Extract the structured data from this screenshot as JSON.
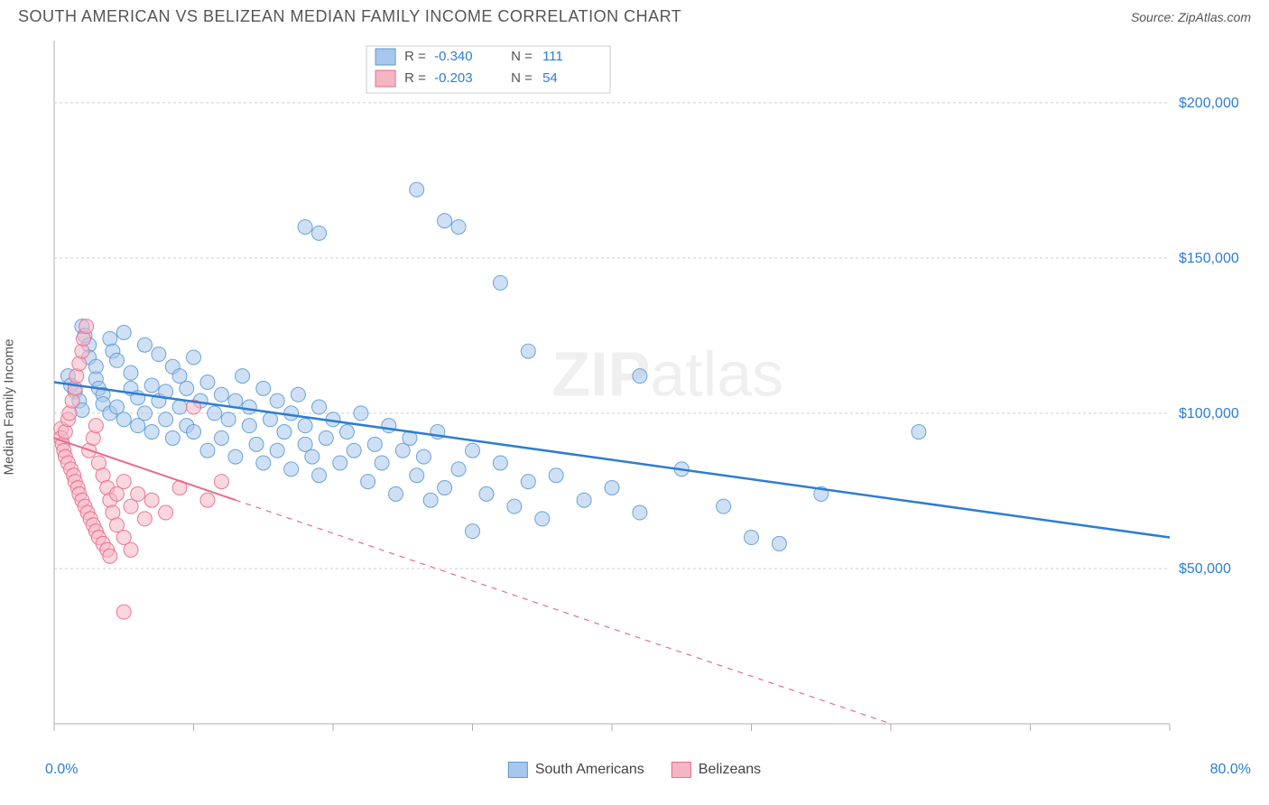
{
  "title": "SOUTH AMERICAN VS BELIZEAN MEDIAN FAMILY INCOME CORRELATION CHART",
  "source_label": "Source:",
  "source_value": "ZipAtlas.com",
  "ylabel": "Median Family Income",
  "watermark_bold": "ZIP",
  "watermark_rest": "atlas",
  "chart": {
    "type": "scatter",
    "background_color": "#ffffff",
    "grid_color": "#cccccc",
    "axis_color": "#b0b0b0",
    "xlim": [
      0,
      80
    ],
    "ylim": [
      0,
      220000
    ],
    "x_min_label": "0.0%",
    "x_max_label": "80.0%",
    "y_ticks": [
      50000,
      100000,
      150000,
      200000
    ],
    "y_tick_labels": [
      "$50,000",
      "$100,000",
      "$150,000",
      "$200,000"
    ],
    "x_minor_ticks": [
      0,
      10,
      20,
      30,
      40,
      50,
      60,
      70,
      80
    ],
    "tick_label_color": "#2d7dd2",
    "tick_label_fontsize": 16,
    "marker_radius": 8,
    "marker_opacity": 0.55,
    "marker_stroke_opacity": 0.9,
    "series": [
      {
        "name": "South Americans",
        "fill_color": "#a7c7ed",
        "stroke_color": "#5b9bd5",
        "r_value": "-0.340",
        "n_value": "111",
        "trend": {
          "x1": 0,
          "y1": 110000,
          "x2": 80,
          "y2": 60000,
          "solid_until_x": 80,
          "color": "#2d7dd2",
          "width": 2.5
        },
        "points": [
          [
            1,
            112000
          ],
          [
            1.2,
            109000
          ],
          [
            1.5,
            107000
          ],
          [
            1.8,
            104000
          ],
          [
            2,
            101000
          ],
          [
            2,
            128000
          ],
          [
            2.2,
            125000
          ],
          [
            2.5,
            122000
          ],
          [
            2.5,
            118000
          ],
          [
            3,
            115000
          ],
          [
            3,
            111000
          ],
          [
            3.2,
            108000
          ],
          [
            3.5,
            106000
          ],
          [
            3.5,
            103000
          ],
          [
            4,
            100000
          ],
          [
            4,
            124000
          ],
          [
            4.2,
            120000
          ],
          [
            4.5,
            117000
          ],
          [
            4.5,
            102000
          ],
          [
            5,
            98000
          ],
          [
            5,
            126000
          ],
          [
            5.5,
            113000
          ],
          [
            5.5,
            108000
          ],
          [
            6,
            105000
          ],
          [
            6,
            96000
          ],
          [
            6.5,
            122000
          ],
          [
            6.5,
            100000
          ],
          [
            7,
            109000
          ],
          [
            7,
            94000
          ],
          [
            7.5,
            119000
          ],
          [
            7.5,
            104000
          ],
          [
            8,
            107000
          ],
          [
            8,
            98000
          ],
          [
            8.5,
            115000
          ],
          [
            8.5,
            92000
          ],
          [
            9,
            102000
          ],
          [
            9,
            112000
          ],
          [
            9.5,
            96000
          ],
          [
            9.5,
            108000
          ],
          [
            10,
            118000
          ],
          [
            10,
            94000
          ],
          [
            10.5,
            104000
          ],
          [
            11,
            110000
          ],
          [
            11,
            88000
          ],
          [
            11.5,
            100000
          ],
          [
            12,
            106000
          ],
          [
            12,
            92000
          ],
          [
            12.5,
            98000
          ],
          [
            13,
            104000
          ],
          [
            13,
            86000
          ],
          [
            13.5,
            112000
          ],
          [
            14,
            96000
          ],
          [
            14,
            102000
          ],
          [
            14.5,
            90000
          ],
          [
            15,
            108000
          ],
          [
            15,
            84000
          ],
          [
            15.5,
            98000
          ],
          [
            16,
            104000
          ],
          [
            16,
            88000
          ],
          [
            16.5,
            94000
          ],
          [
            17,
            100000
          ],
          [
            17,
            82000
          ],
          [
            17.5,
            106000
          ],
          [
            18,
            90000
          ],
          [
            18,
            96000
          ],
          [
            18.5,
            86000
          ],
          [
            19,
            102000
          ],
          [
            19,
            80000
          ],
          [
            19.5,
            92000
          ],
          [
            20,
            98000
          ],
          [
            20.5,
            84000
          ],
          [
            21,
            94000
          ],
          [
            21.5,
            88000
          ],
          [
            22,
            100000
          ],
          [
            22.5,
            78000
          ],
          [
            23,
            90000
          ],
          [
            23.5,
            84000
          ],
          [
            24,
            96000
          ],
          [
            24.5,
            74000
          ],
          [
            25,
            88000
          ],
          [
            25.5,
            92000
          ],
          [
            26,
            80000
          ],
          [
            26.5,
            86000
          ],
          [
            27,
            72000
          ],
          [
            27.5,
            94000
          ],
          [
            28,
            76000
          ],
          [
            29,
            82000
          ],
          [
            30,
            88000
          ],
          [
            30,
            62000
          ],
          [
            31,
            74000
          ],
          [
            32,
            84000
          ],
          [
            33,
            70000
          ],
          [
            34,
            78000
          ],
          [
            35,
            66000
          ],
          [
            36,
            80000
          ],
          [
            38,
            72000
          ],
          [
            40,
            76000
          ],
          [
            42,
            68000
          ],
          [
            45,
            82000
          ],
          [
            48,
            70000
          ],
          [
            50,
            60000
          ],
          [
            52,
            58000
          ],
          [
            55,
            74000
          ],
          [
            18,
            160000
          ],
          [
            19,
            158000
          ],
          [
            28,
            162000
          ],
          [
            29,
            160000
          ],
          [
            26,
            172000
          ],
          [
            32,
            142000
          ],
          [
            34,
            120000
          ],
          [
            42,
            112000
          ],
          [
            62,
            94000
          ]
        ]
      },
      {
        "name": "Belizeans",
        "fill_color": "#f5b6c4",
        "stroke_color": "#e86b8a",
        "r_value": "-0.203",
        "n_value": "54",
        "trend": {
          "x1": 0,
          "y1": 92000,
          "x2": 60,
          "y2": 0,
          "solid_until_x": 13,
          "color": "#e86b8a",
          "width": 2
        },
        "points": [
          [
            0.5,
            95000
          ],
          [
            0.5,
            92000
          ],
          [
            0.6,
            90000
          ],
          [
            0.7,
            88000
          ],
          [
            0.8,
            94000
          ],
          [
            0.8,
            86000
          ],
          [
            1,
            98000
          ],
          [
            1,
            84000
          ],
          [
            1.1,
            100000
          ],
          [
            1.2,
            82000
          ],
          [
            1.3,
            104000
          ],
          [
            1.4,
            80000
          ],
          [
            1.5,
            108000
          ],
          [
            1.5,
            78000
          ],
          [
            1.6,
            112000
          ],
          [
            1.7,
            76000
          ],
          [
            1.8,
            116000
          ],
          [
            1.8,
            74000
          ],
          [
            2,
            120000
          ],
          [
            2,
            72000
          ],
          [
            2.1,
            124000
          ],
          [
            2.2,
            70000
          ],
          [
            2.3,
            128000
          ],
          [
            2.4,
            68000
          ],
          [
            2.5,
            88000
          ],
          [
            2.6,
            66000
          ],
          [
            2.8,
            92000
          ],
          [
            2.8,
            64000
          ],
          [
            3,
            96000
          ],
          [
            3,
            62000
          ],
          [
            3.2,
            84000
          ],
          [
            3.2,
            60000
          ],
          [
            3.5,
            80000
          ],
          [
            3.5,
            58000
          ],
          [
            3.8,
            76000
          ],
          [
            3.8,
            56000
          ],
          [
            4,
            72000
          ],
          [
            4,
            54000
          ],
          [
            4.2,
            68000
          ],
          [
            4.5,
            74000
          ],
          [
            4.5,
            64000
          ],
          [
            5,
            78000
          ],
          [
            5,
            60000
          ],
          [
            5.5,
            70000
          ],
          [
            5.5,
            56000
          ],
          [
            6,
            74000
          ],
          [
            6.5,
            66000
          ],
          [
            7,
            72000
          ],
          [
            8,
            68000
          ],
          [
            9,
            76000
          ],
          [
            10,
            102000
          ],
          [
            11,
            72000
          ],
          [
            12,
            78000
          ],
          [
            5,
            36000
          ]
        ]
      }
    ],
    "legend_top": {
      "r_label": "R =",
      "n_label": "N =",
      "label_color": "#555555",
      "value_color": "#2d7dd2",
      "box_color": "#cccccc",
      "fontsize": 15
    },
    "legend_bottom": {
      "fontsize": 16,
      "label_color": "#444444"
    }
  }
}
